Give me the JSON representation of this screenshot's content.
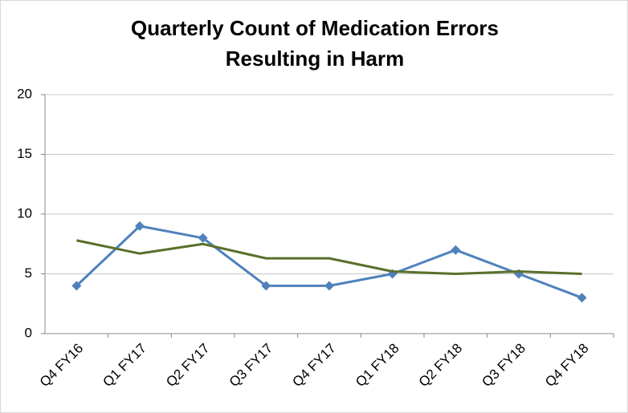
{
  "chart_data": {
    "type": "line",
    "title": [
      "Quarterly Count of Medication Errors",
      "Resulting in Harm"
    ],
    "categories": [
      "Q4 FY16",
      "Q1 FY17",
      "Q2 FY17",
      "Q3 FY17",
      "Q4 FY17",
      "Q1 FY18",
      "Q2 FY18",
      "Q3 FY18",
      "Q4 FY18"
    ],
    "series": [
      {
        "color": "#4f81bd",
        "marker": "diamond",
        "values": [
          4,
          9,
          8,
          4,
          4,
          5,
          7,
          5,
          3
        ]
      },
      {
        "color": "#5a6f2b",
        "marker": "none",
        "values": [
          7.8,
          6.7,
          7.5,
          6.3,
          6.3,
          5.2,
          5.0,
          5.2,
          5.0
        ]
      }
    ],
    "ylim": [
      0,
      20
    ],
    "yticks": [
      0,
      5,
      10,
      15,
      20
    ],
    "grid": true
  }
}
